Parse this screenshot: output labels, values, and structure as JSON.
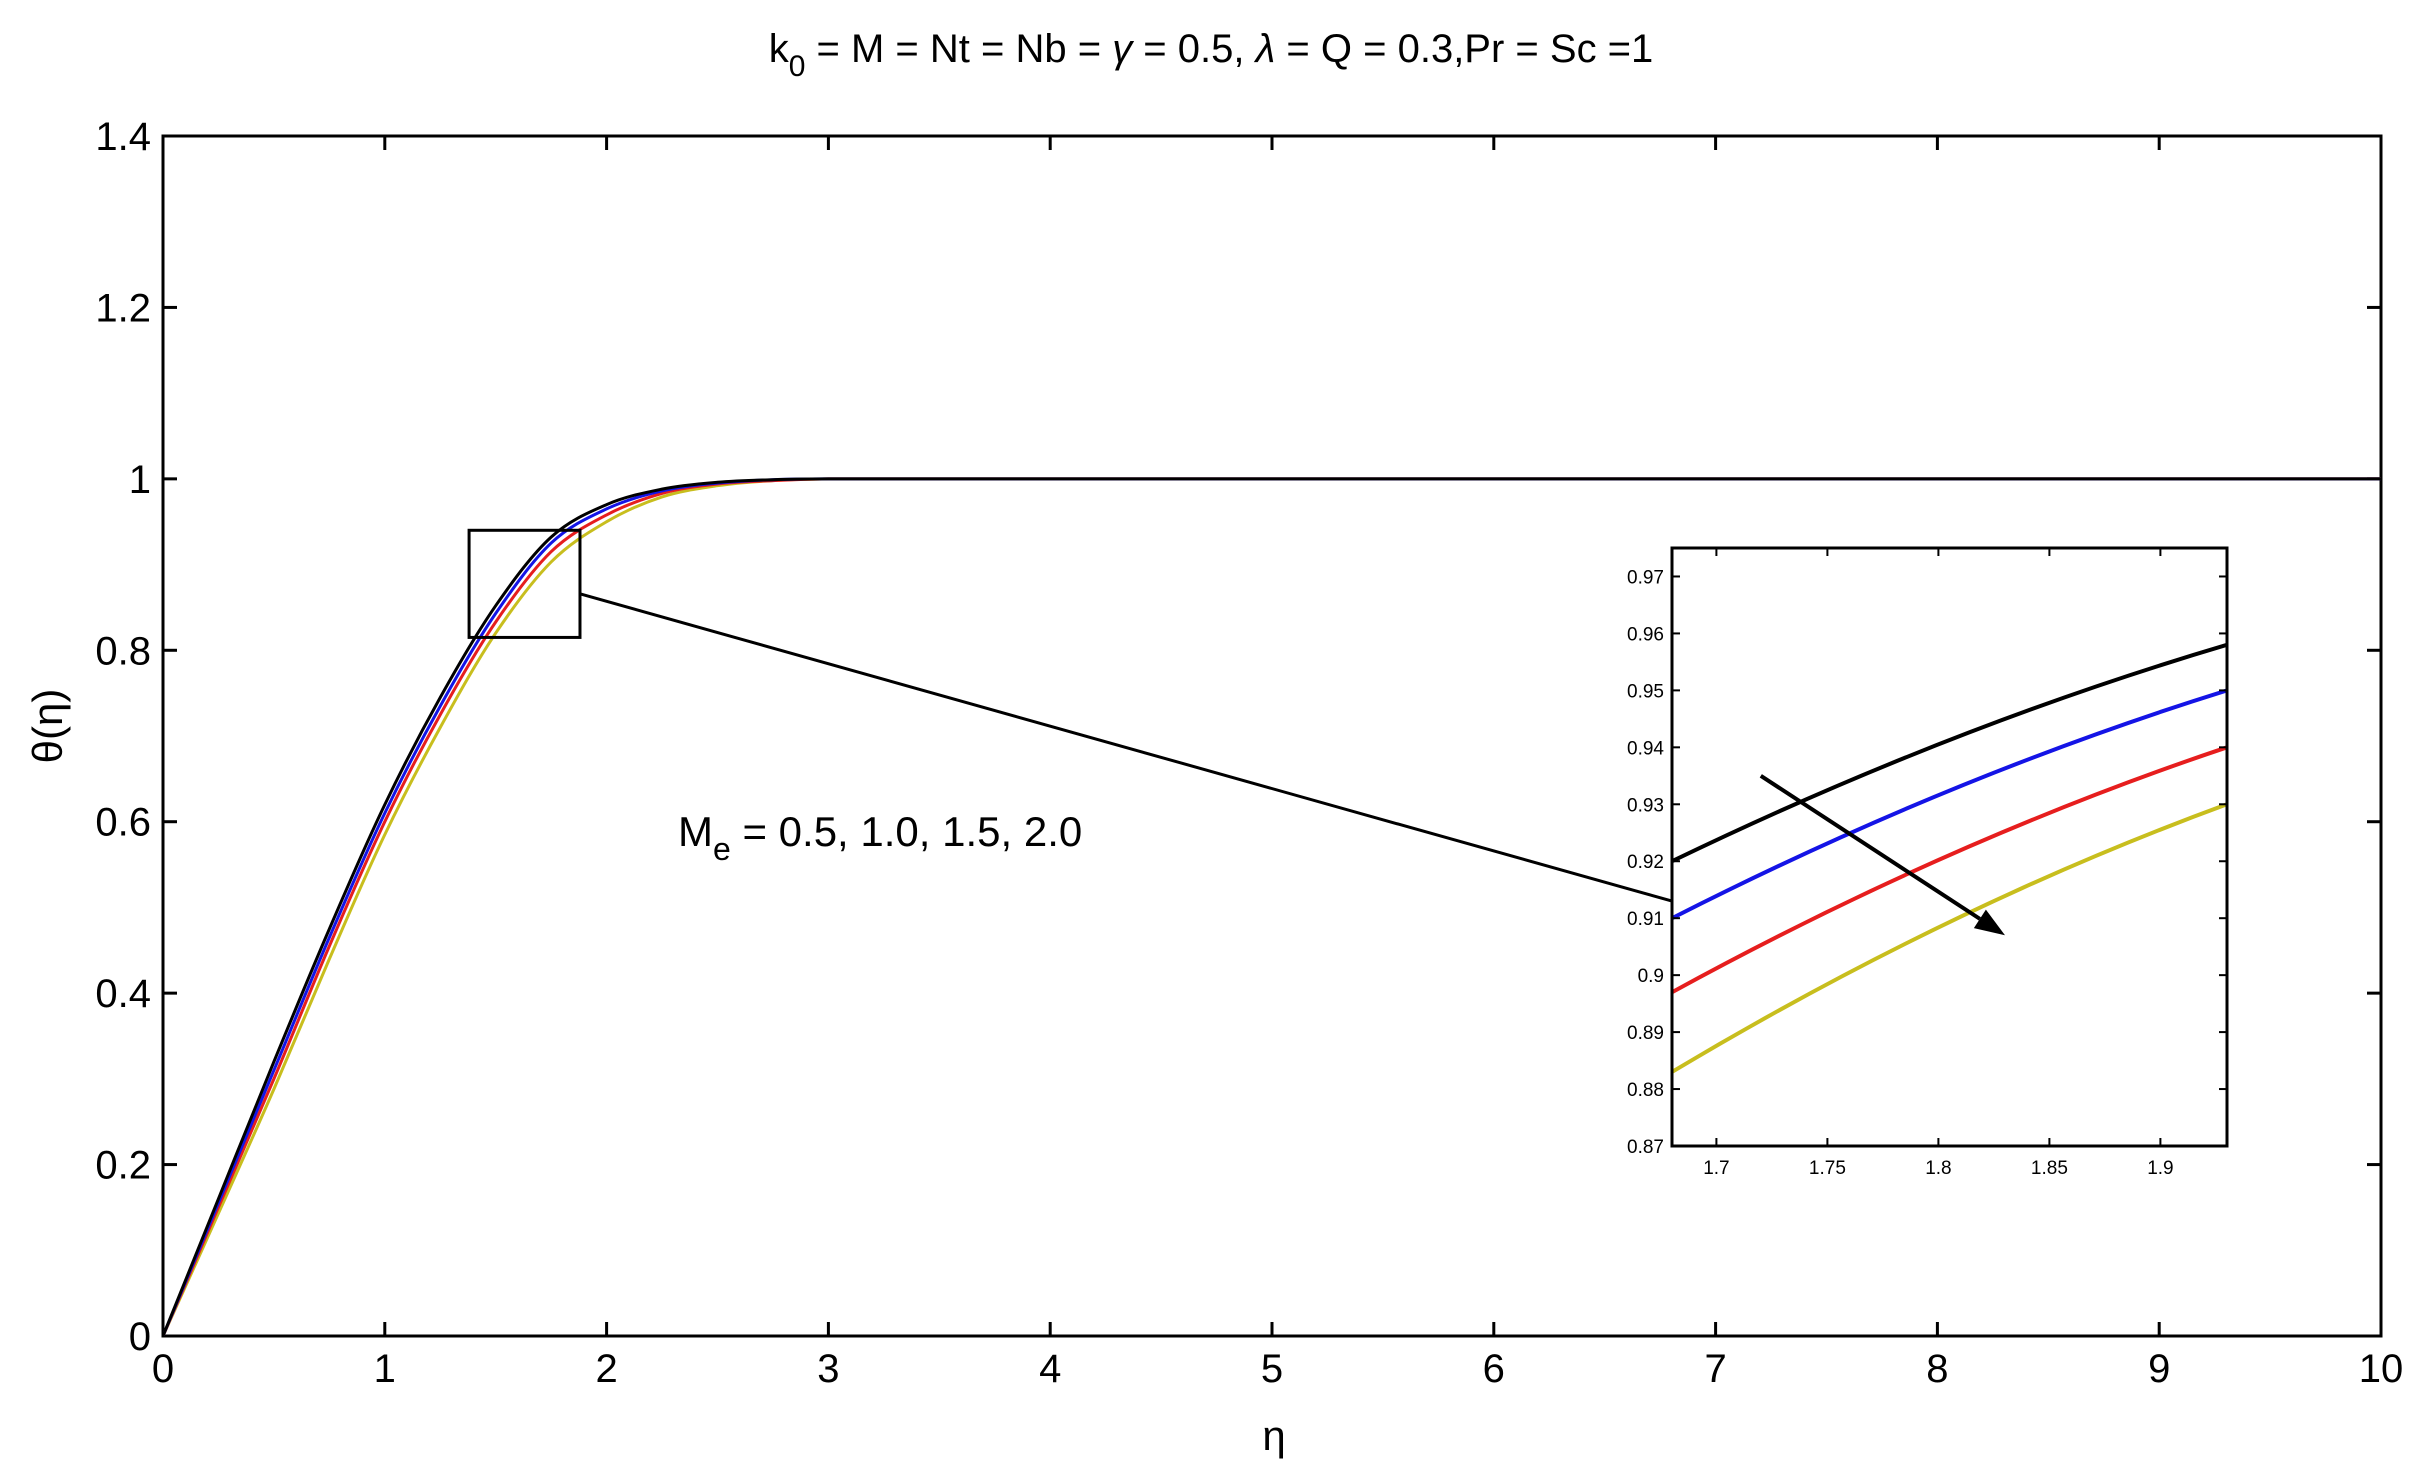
{
  "chart_data": {
    "type": "line",
    "title": {
      "parts": [
        {
          "t": "k"
        },
        {
          "t": "0",
          "sub": true
        },
        {
          "t": " = M = Nt = Nb = "
        },
        {
          "t": "γ",
          "italic": true
        },
        {
          "t": " = 0.5, "
        },
        {
          "t": "λ",
          "italic": true
        },
        {
          "t": "  = Q = 0.3,Pr = Sc =1"
        }
      ]
    },
    "xlabel": "η",
    "ylabel": "θ(η)",
    "xlim": [
      0,
      10
    ],
    "ylim": [
      0,
      1.4
    ],
    "xticks": [
      "0",
      "1",
      "2",
      "3",
      "4",
      "5",
      "6",
      "7",
      "8",
      "9",
      "10"
    ],
    "yticks": [
      "0",
      "0.2",
      "0.4",
      "0.6",
      "0.8",
      "1",
      "1.2",
      "1.4"
    ],
    "grid": false,
    "annotation": {
      "parts": [
        {
          "t": "M"
        },
        {
          "t": "e",
          "sub": true
        },
        {
          "t": " = 0.5, 1.0, 1.5, 2.0"
        }
      ]
    },
    "series": [
      {
        "color": "#000000",
        "x": [
          0,
          0.25,
          0.5,
          0.75,
          1,
          1.25,
          1.5,
          1.75,
          2,
          2.25,
          2.5,
          2.75,
          3,
          3.5,
          4,
          5,
          6,
          7,
          8,
          9,
          10
        ],
        "y": [
          0,
          0.16,
          0.32,
          0.475,
          0.62,
          0.745,
          0.852,
          0.932,
          0.97,
          0.988,
          0.996,
          0.999,
          1,
          1,
          1,
          1,
          1,
          1,
          1,
          1,
          1
        ]
      },
      {
        "color": "#1414e6",
        "x": [
          0,
          0.25,
          0.5,
          0.75,
          1,
          1.25,
          1.5,
          1.75,
          2,
          2.25,
          2.5,
          2.75,
          3,
          3.5,
          4,
          5,
          6,
          7,
          8,
          9,
          10
        ],
        "y": [
          0,
          0.155,
          0.31,
          0.465,
          0.61,
          0.735,
          0.843,
          0.925,
          0.965,
          0.986,
          0.995,
          0.999,
          1,
          1,
          1,
          1,
          1,
          1,
          1,
          1,
          1
        ]
      },
      {
        "color": "#e61e1e",
        "x": [
          0,
          0.25,
          0.5,
          0.75,
          1,
          1.25,
          1.5,
          1.75,
          2,
          2.25,
          2.5,
          2.75,
          3,
          3.5,
          4,
          5,
          6,
          7,
          8,
          9,
          10
        ],
        "y": [
          0,
          0.15,
          0.3,
          0.455,
          0.6,
          0.725,
          0.833,
          0.915,
          0.958,
          0.983,
          0.994,
          0.998,
          1,
          1,
          1,
          1,
          1,
          1,
          1,
          1,
          1
        ]
      },
      {
        "color": "#c8be1e",
        "x": [
          0,
          0.25,
          0.5,
          0.75,
          1,
          1.25,
          1.5,
          1.75,
          2,
          2.25,
          2.5,
          2.75,
          3,
          3.5,
          4,
          5,
          6,
          7,
          8,
          9,
          10
        ],
        "y": [
          0,
          0.143,
          0.288,
          0.44,
          0.585,
          0.71,
          0.82,
          0.903,
          0.95,
          0.979,
          0.992,
          0.998,
          1,
          1,
          1,
          1,
          1,
          1,
          1,
          1,
          1
        ]
      }
    ],
    "zoom_box": {
      "x": [
        1.38,
        1.88
      ],
      "y": [
        0.815,
        0.94
      ]
    },
    "inset": {
      "xlim": [
        1.68,
        1.93
      ],
      "ylim": [
        0.87,
        0.975
      ],
      "xticks": [
        "1.7",
        "1.75",
        "1.8",
        "1.85",
        "1.9"
      ],
      "yticks": [
        "0.87",
        "0.88",
        "0.89",
        "0.9",
        "0.91",
        "0.92",
        "0.93",
        "0.94",
        "0.95",
        "0.96",
        "0.97"
      ],
      "series": [
        {
          "color": "#000000",
          "x": [
            1.68,
            1.93
          ],
          "y": [
            0.92,
            0.958
          ]
        },
        {
          "color": "#1414e6",
          "x": [
            1.68,
            1.93
          ],
          "y": [
            0.91,
            0.95
          ]
        },
        {
          "color": "#e61e1e",
          "x": [
            1.68,
            1.93
          ],
          "y": [
            0.897,
            0.94
          ]
        },
        {
          "color": "#c8be1e",
          "x": [
            1.68,
            1.93
          ],
          "y": [
            0.883,
            0.93
          ]
        }
      ],
      "arrow": {
        "from": [
          1.72,
          0.935
        ],
        "to": [
          1.83,
          0.907
        ]
      }
    }
  }
}
